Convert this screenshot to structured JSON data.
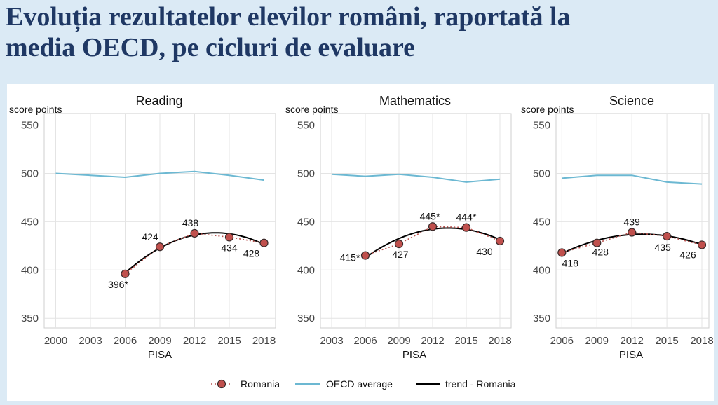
{
  "slide": {
    "title_line1": "Evoluția rezultatelor elevilor români, raportată la",
    "title_line2": "media OECD, pe cicluri de evaluare"
  },
  "legend": {
    "romania": "Romania",
    "oecd": "OECD average",
    "trend": "trend - Romania"
  },
  "colors": {
    "romania_marker": "#c0504d",
    "romania_line": "#b85450",
    "oecd_line": "#6cb8d2",
    "trend_line": "#000000",
    "grid": "#e4e4e4",
    "title": "#1f3864"
  },
  "chart_data": [
    {
      "type": "line",
      "title": "Reading",
      "ylabel": "score points",
      "xlabel": "PISA",
      "x_ticks": [
        2000,
        2003,
        2006,
        2009,
        2012,
        2015,
        2018
      ],
      "xlim": [
        1999,
        2019
      ],
      "ylim": [
        340,
        562
      ],
      "y_ticks": [
        350,
        400,
        450,
        500,
        550
      ],
      "series": [
        {
          "name": "OECD average",
          "x": [
            2000,
            2003,
            2006,
            2009,
            2012,
            2015,
            2018
          ],
          "y": [
            500,
            498,
            496,
            500,
            502,
            498,
            493
          ]
        },
        {
          "name": "Romania",
          "x": [
            2006,
            2009,
            2012,
            2015,
            2018
          ],
          "y": [
            396,
            424,
            438,
            434,
            428
          ],
          "labels": [
            "396*",
            "424",
            "438",
            "434",
            "428"
          ]
        }
      ],
      "grid": true
    },
    {
      "type": "line",
      "title": "Mathematics",
      "ylabel": "score points",
      "xlabel": "PISA",
      "x_ticks": [
        2003,
        2006,
        2009,
        2012,
        2015,
        2018
      ],
      "xlim": [
        2002,
        2019
      ],
      "ylim": [
        340,
        562
      ],
      "y_ticks": [
        350,
        400,
        450,
        500,
        550
      ],
      "series": [
        {
          "name": "OECD average",
          "x": [
            2003,
            2006,
            2009,
            2012,
            2015,
            2018
          ],
          "y": [
            499,
            497,
            499,
            496,
            491,
            494
          ]
        },
        {
          "name": "Romania",
          "x": [
            2006,
            2009,
            2012,
            2015,
            2018
          ],
          "y": [
            415,
            427,
            445,
            444,
            430
          ],
          "labels": [
            "415*",
            "427",
            "445*",
            "444*",
            "430"
          ]
        }
      ],
      "grid": true
    },
    {
      "type": "line",
      "title": "Science",
      "ylabel": "score points",
      "xlabel": "PISA",
      "x_ticks": [
        2006,
        2009,
        2012,
        2015,
        2018
      ],
      "xlim": [
        2005.5,
        2018.6
      ],
      "ylim": [
        340,
        562
      ],
      "y_ticks": [
        350,
        400,
        450,
        500,
        550
      ],
      "series": [
        {
          "name": "OECD average",
          "x": [
            2006,
            2009,
            2012,
            2015,
            2018
          ],
          "y": [
            495,
            498,
            498,
            491,
            489
          ]
        },
        {
          "name": "Romania",
          "x": [
            2006,
            2009,
            2012,
            2015,
            2018
          ],
          "y": [
            418,
            428,
            439,
            435,
            426
          ],
          "labels": [
            "418",
            "428",
            "439",
            "435",
            "426"
          ]
        }
      ],
      "grid": true
    }
  ]
}
